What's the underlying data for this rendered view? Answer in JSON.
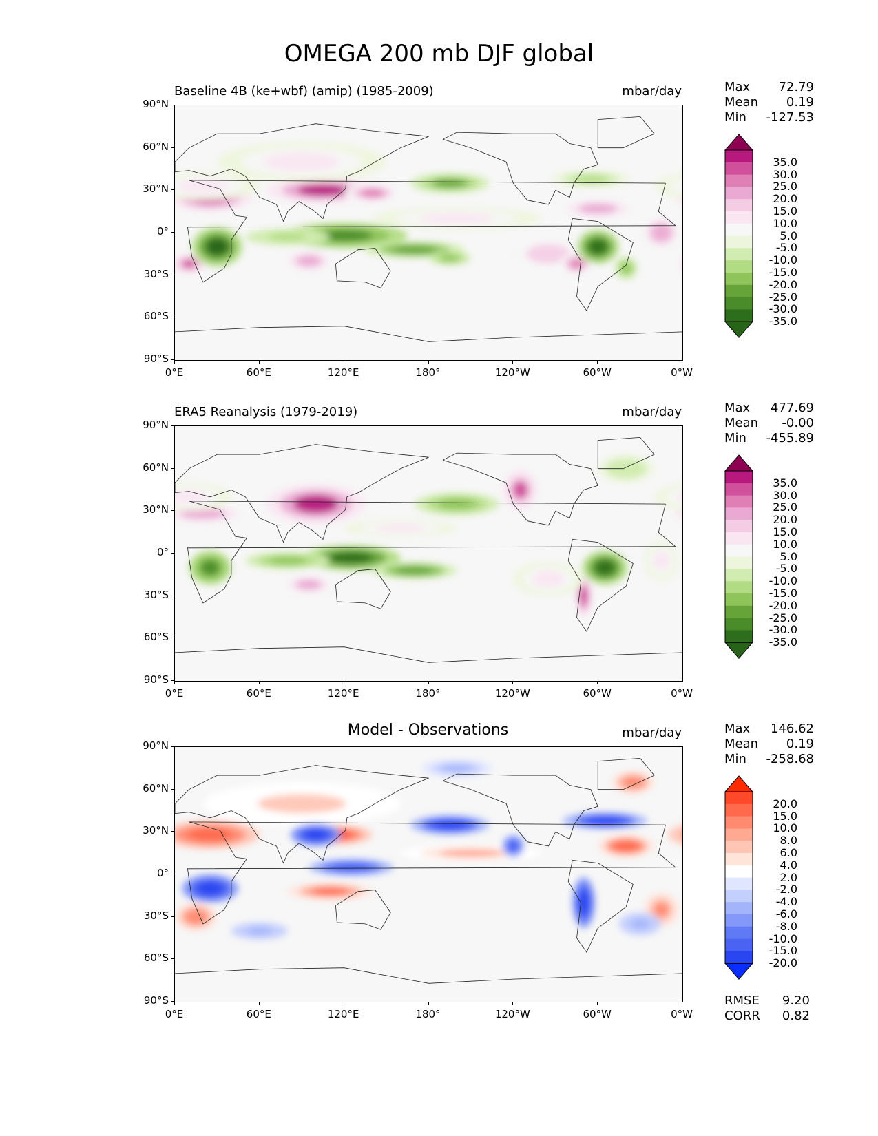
{
  "figure_title": "OMEGA 200 mb DJF global",
  "colors": {
    "background": "#f7f7f7",
    "pink_max": "#8e0152",
    "green_min": "#276419",
    "diff_max": "#ff1e00",
    "diff_min": "#0a2eff"
  },
  "icons": {
    "colorbar_up_arrow": "triangle-up-icon",
    "colorbar_down_arrow": "triangle-down-icon"
  },
  "panels": [
    {
      "title": "Baseline 4B (ke+wbf) (amip) (1985-2009)",
      "units": "mbar/day",
      "stats": {
        "max_label": "Max",
        "max": "72.79",
        "mean_label": "Mean",
        "mean": "0.19",
        "min_label": "Min",
        "min": "-127.53"
      },
      "colorbar": {
        "labels": [
          "35.0",
          "30.0",
          "25.0",
          "20.0",
          "15.0",
          "10.0",
          "5.0",
          "-5.0",
          "-10.0",
          "-15.0",
          "-20.0",
          "-25.0",
          "-30.0",
          "-35.0"
        ],
        "colors": [
          "#8e0152",
          "#b7197e",
          "#d0509b",
          "#e07fb6",
          "#eaa9d2",
          "#f4cde5",
          "#f9e6f1",
          "#f7f7f7",
          "#edf6dc",
          "#d1ecb0",
          "#b2dc83",
          "#8ec45a",
          "#66a43a",
          "#4a8c2a",
          "#2d6e1c",
          "#276419"
        ]
      }
    },
    {
      "title": "ERA5 Reanalysis (1979-2019)",
      "units": "mbar/day",
      "stats": {
        "max_label": "Max",
        "max": "477.69",
        "mean_label": "Mean",
        "mean": "-0.00",
        "min_label": "Min",
        "min": "-455.89"
      },
      "colorbar": {
        "labels": [
          "35.0",
          "30.0",
          "25.0",
          "20.0",
          "15.0",
          "10.0",
          "5.0",
          "-5.0",
          "-10.0",
          "-15.0",
          "-20.0",
          "-25.0",
          "-30.0",
          "-35.0"
        ],
        "colors": [
          "#8e0152",
          "#b7197e",
          "#d0509b",
          "#e07fb6",
          "#eaa9d2",
          "#f4cde5",
          "#f9e6f1",
          "#f7f7f7",
          "#edf6dc",
          "#d1ecb0",
          "#b2dc83",
          "#8ec45a",
          "#66a43a",
          "#4a8c2a",
          "#2d6e1c",
          "#276419"
        ]
      }
    },
    {
      "title": "Model - Observations",
      "units": "mbar/day",
      "stats": {
        "max_label": "Max",
        "max": "146.62",
        "mean_label": "Mean",
        "mean": "0.19",
        "min_label": "Min",
        "min": "-258.68"
      },
      "colorbar": {
        "labels": [
          "20.0",
          "15.0",
          "10.0",
          "8.0",
          "6.0",
          "4.0",
          "2.0",
          "-2.0",
          "-4.0",
          "-6.0",
          "-8.0",
          "-10.0",
          "-15.0",
          "-20.0"
        ],
        "colors": [
          "#ff2a00",
          "#ff4a2a",
          "#ff6a4d",
          "#ff8a70",
          "#ffa892",
          "#ffc6b6",
          "#ffe4da",
          "#ffffff",
          "#e0e6ff",
          "#c3cffd",
          "#a3b4fb",
          "#8398f8",
          "#607af5",
          "#4a63f3",
          "#2a46f1",
          "#0a2eff"
        ]
      },
      "extra_stats": {
        "rmse_label": "RMSE",
        "rmse": "9.20",
        "corr_label": "CORR",
        "corr": "0.82"
      }
    }
  ],
  "axes": {
    "yticks": [
      "90°N",
      "60°N",
      "30°N",
      "0°",
      "30°S",
      "60°S",
      "90°S"
    ],
    "xticks": [
      "0°E",
      "60°E",
      "120°E",
      "180°",
      "120°W",
      "60°W",
      "0°W"
    ]
  },
  "chart_data": [
    {
      "type": "heatmap",
      "title": "Baseline 4B (ke+wbf) (amip) (1985-2009)",
      "units": "mbar/day",
      "x_range": [
        0,
        360
      ],
      "y_range": [
        -90,
        90
      ],
      "xlabel": "",
      "ylabel": "",
      "levels": [
        -35,
        -30,
        -25,
        -20,
        -15,
        -10,
        -5,
        5,
        10,
        15,
        20,
        25,
        30,
        35
      ],
      "max": 72.79,
      "mean": 0.19,
      "min": -127.53,
      "features": [
        {
          "lon": 25,
          "lat": 25,
          "rx": 30,
          "ry": 10,
          "v": 33
        },
        {
          "lon": 105,
          "lat": 30,
          "rx": 40,
          "ry": 9,
          "v": 36
        },
        {
          "lon": 140,
          "lat": 28,
          "rx": 20,
          "ry": 7,
          "v": 25
        },
        {
          "lon": 20,
          "lat": 33,
          "rx": 40,
          "ry": 10,
          "v": 12
        },
        {
          "lon": 10,
          "lat": -22,
          "rx": 12,
          "ry": 7,
          "v": 30
        },
        {
          "lon": 95,
          "lat": -20,
          "rx": 20,
          "ry": 9,
          "v": 22
        },
        {
          "lon": 265,
          "lat": -15,
          "rx": 35,
          "ry": 15,
          "v": 15
        },
        {
          "lon": 285,
          "lat": -22,
          "rx": 12,
          "ry": 8,
          "v": 26
        },
        {
          "lon": 300,
          "lat": 17,
          "rx": 30,
          "ry": 8,
          "v": 22
        },
        {
          "lon": 345,
          "lat": 0,
          "rx": 14,
          "ry": 12,
          "v": 24
        },
        {
          "lon": 200,
          "lat": 10,
          "rx": 60,
          "ry": 8,
          "v": 10
        },
        {
          "lon": 90,
          "lat": 50,
          "rx": 60,
          "ry": 14,
          "v": 10
        },
        {
          "lon": 30,
          "lat": -10,
          "rx": 18,
          "ry": 14,
          "v": -36
        },
        {
          "lon": 120,
          "lat": -2,
          "rx": 45,
          "ry": 9,
          "v": -30
        },
        {
          "lon": 170,
          "lat": -12,
          "rx": 35,
          "ry": 6,
          "v": -25
        },
        {
          "lon": 195,
          "lat": -18,
          "rx": 15,
          "ry": 5,
          "v": -20
        },
        {
          "lon": 80,
          "lat": -3,
          "rx": 30,
          "ry": 6,
          "v": -15
        },
        {
          "lon": 300,
          "lat": -10,
          "rx": 15,
          "ry": 12,
          "v": -35
        },
        {
          "lon": 195,
          "lat": 35,
          "rx": 28,
          "ry": 7,
          "v": -22
        },
        {
          "lon": 295,
          "lat": 38,
          "rx": 28,
          "ry": 6,
          "v": -12
        },
        {
          "lon": 320,
          "lat": -25,
          "rx": 8,
          "ry": 8,
          "v": -20
        }
      ]
    },
    {
      "type": "heatmap",
      "title": "ERA5 Reanalysis (1979-2019)",
      "units": "mbar/day",
      "x_range": [
        0,
        360
      ],
      "y_range": [
        -90,
        90
      ],
      "xlabel": "",
      "ylabel": "",
      "levels": [
        -35,
        -30,
        -25,
        -20,
        -15,
        -10,
        -5,
        5,
        10,
        15,
        20,
        25,
        30,
        35
      ],
      "max": 477.69,
      "mean": -0.0,
      "min": -455.89,
      "features": [
        {
          "lon": 100,
          "lat": 35,
          "rx": 35,
          "ry": 14,
          "v": 36
        },
        {
          "lon": 20,
          "lat": 28,
          "rx": 35,
          "ry": 8,
          "v": 22
        },
        {
          "lon": 10,
          "lat": 40,
          "rx": 30,
          "ry": 10,
          "v": 12
        },
        {
          "lon": 245,
          "lat": 45,
          "rx": 12,
          "ry": 14,
          "v": 30
        },
        {
          "lon": 290,
          "lat": -30,
          "rx": 6,
          "ry": 15,
          "v": 34
        },
        {
          "lon": 95,
          "lat": -22,
          "rx": 20,
          "ry": 8,
          "v": 20
        },
        {
          "lon": 265,
          "lat": -18,
          "rx": 25,
          "ry": 12,
          "v": 14
        },
        {
          "lon": 345,
          "lat": -5,
          "rx": 12,
          "ry": 14,
          "v": 14
        },
        {
          "lon": 160,
          "lat": 18,
          "rx": 40,
          "ry": 6,
          "v": 12
        },
        {
          "lon": 25,
          "lat": -10,
          "rx": 15,
          "ry": 12,
          "v": -30
        },
        {
          "lon": 125,
          "lat": -3,
          "rx": 35,
          "ry": 9,
          "v": -32
        },
        {
          "lon": 170,
          "lat": -12,
          "rx": 30,
          "ry": 6,
          "v": -25
        },
        {
          "lon": 80,
          "lat": -5,
          "rx": 30,
          "ry": 6,
          "v": -18
        },
        {
          "lon": 305,
          "lat": -10,
          "rx": 16,
          "ry": 12,
          "v": -33
        },
        {
          "lon": 200,
          "lat": 35,
          "rx": 30,
          "ry": 8,
          "v": -20
        },
        {
          "lon": 320,
          "lat": 60,
          "rx": 20,
          "ry": 10,
          "v": -10
        }
      ]
    },
    {
      "type": "heatmap",
      "title": "Model - Observations",
      "units": "mbar/day",
      "x_range": [
        0,
        360
      ],
      "y_range": [
        -90,
        90
      ],
      "xlabel": "",
      "ylabel": "",
      "levels": [
        -20,
        -15,
        -10,
        -8,
        -6,
        -4,
        -2,
        2,
        4,
        6,
        8,
        10,
        15,
        20
      ],
      "max": 146.62,
      "mean": 0.19,
      "min": -258.68,
      "rmse": 9.2,
      "corr": 0.82,
      "features": [
        {
          "lon": 25,
          "lat": 28,
          "rx": 35,
          "ry": 10,
          "v": 18
        },
        {
          "lon": 115,
          "lat": 28,
          "rx": 25,
          "ry": 7,
          "v": 20
        },
        {
          "lon": 15,
          "lat": -30,
          "rx": 15,
          "ry": 10,
          "v": 14
        },
        {
          "lon": 110,
          "lat": -12,
          "rx": 30,
          "ry": 6,
          "v": 15
        },
        {
          "lon": 320,
          "lat": 20,
          "rx": 20,
          "ry": 8,
          "v": 16
        },
        {
          "lon": 345,
          "lat": -25,
          "rx": 12,
          "ry": 12,
          "v": 12
        },
        {
          "lon": 210,
          "lat": 15,
          "rx": 50,
          "ry": 6,
          "v": 8
        },
        {
          "lon": 90,
          "lat": 50,
          "rx": 70,
          "ry": 15,
          "v": 6
        },
        {
          "lon": 325,
          "lat": 65,
          "rx": 15,
          "ry": 8,
          "v": 14
        },
        {
          "lon": 25,
          "lat": -10,
          "rx": 20,
          "ry": 10,
          "v": -18
        },
        {
          "lon": 100,
          "lat": 28,
          "rx": 18,
          "ry": 8,
          "v": -20
        },
        {
          "lon": 125,
          "lat": 5,
          "rx": 30,
          "ry": 6,
          "v": -14
        },
        {
          "lon": 195,
          "lat": 35,
          "rx": 28,
          "ry": 7,
          "v": -17
        },
        {
          "lon": 305,
          "lat": 38,
          "rx": 30,
          "ry": 6,
          "v": -16
        },
        {
          "lon": 290,
          "lat": -20,
          "rx": 8,
          "ry": 18,
          "v": -20
        },
        {
          "lon": 60,
          "lat": -40,
          "rx": 20,
          "ry": 6,
          "v": -6
        },
        {
          "lon": 240,
          "lat": 20,
          "rx": 8,
          "ry": 8,
          "v": -14
        },
        {
          "lon": 200,
          "lat": 75,
          "rx": 25,
          "ry": 6,
          "v": -5
        },
        {
          "lon": 330,
          "lat": -35,
          "rx": 15,
          "ry": 8,
          "v": -6
        }
      ]
    }
  ]
}
